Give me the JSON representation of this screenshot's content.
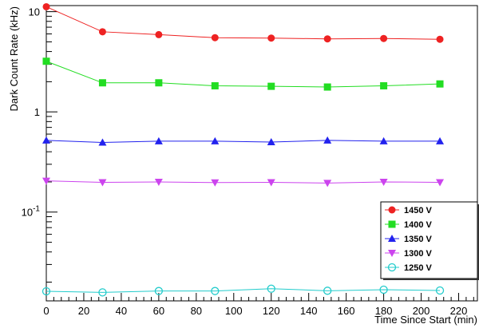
{
  "chart_data": {
    "type": "line",
    "title": "",
    "xlabel": "Time Since Start (min)",
    "ylabel": "Dark Count Rate (kHz)",
    "xlim": [
      0,
      230
    ],
    "ylim": [
      0.013,
      11.5
    ],
    "y_scale": "log",
    "grid": false,
    "legend_position": "bottom-right",
    "x_ticks": [
      0,
      20,
      40,
      60,
      80,
      100,
      120,
      140,
      160,
      180,
      200,
      220
    ],
    "x_tick_labels": [
      "0",
      "20",
      "40",
      "60",
      "80",
      "100",
      "120",
      "140",
      "160",
      "180",
      "200",
      "220"
    ],
    "y_major_ticks": [
      0.1,
      1,
      10
    ],
    "y_tick_labels": [
      {
        "value": 10,
        "base": "10",
        "exp": ""
      },
      {
        "value": 1,
        "base": "1",
        "exp": ""
      },
      {
        "value": 0.1,
        "base": "10",
        "exp": "-1"
      }
    ],
    "x": [
      0,
      30,
      60,
      90,
      120,
      150,
      180,
      210
    ],
    "series": [
      {
        "name": "1450 V",
        "color": "#ee2222",
        "marker": "circle",
        "values": [
          11.2,
          6.3,
          5.9,
          5.5,
          5.45,
          5.35,
          5.4,
          5.3
        ]
      },
      {
        "name": "1400 V",
        "color": "#22dd22",
        "marker": "square",
        "values": [
          3.2,
          1.95,
          1.95,
          1.82,
          1.8,
          1.77,
          1.82,
          1.9
        ]
      },
      {
        "name": "1350 V",
        "color": "#2222ee",
        "marker": "triangle-up",
        "values": [
          0.52,
          0.495,
          0.51,
          0.51,
          0.5,
          0.52,
          0.51,
          0.51
        ]
      },
      {
        "name": "1300 V",
        "color": "#cc44ee",
        "marker": "triangle-down",
        "values": [
          0.205,
          0.198,
          0.2,
          0.197,
          0.198,
          0.195,
          0.2,
          0.198
        ]
      },
      {
        "name": "1250 V",
        "color": "#22cccc",
        "marker": "open-circle",
        "values": [
          0.0162,
          0.0158,
          0.0163,
          0.0163,
          0.0172,
          0.0164,
          0.0168,
          0.0165
        ]
      }
    ]
  }
}
